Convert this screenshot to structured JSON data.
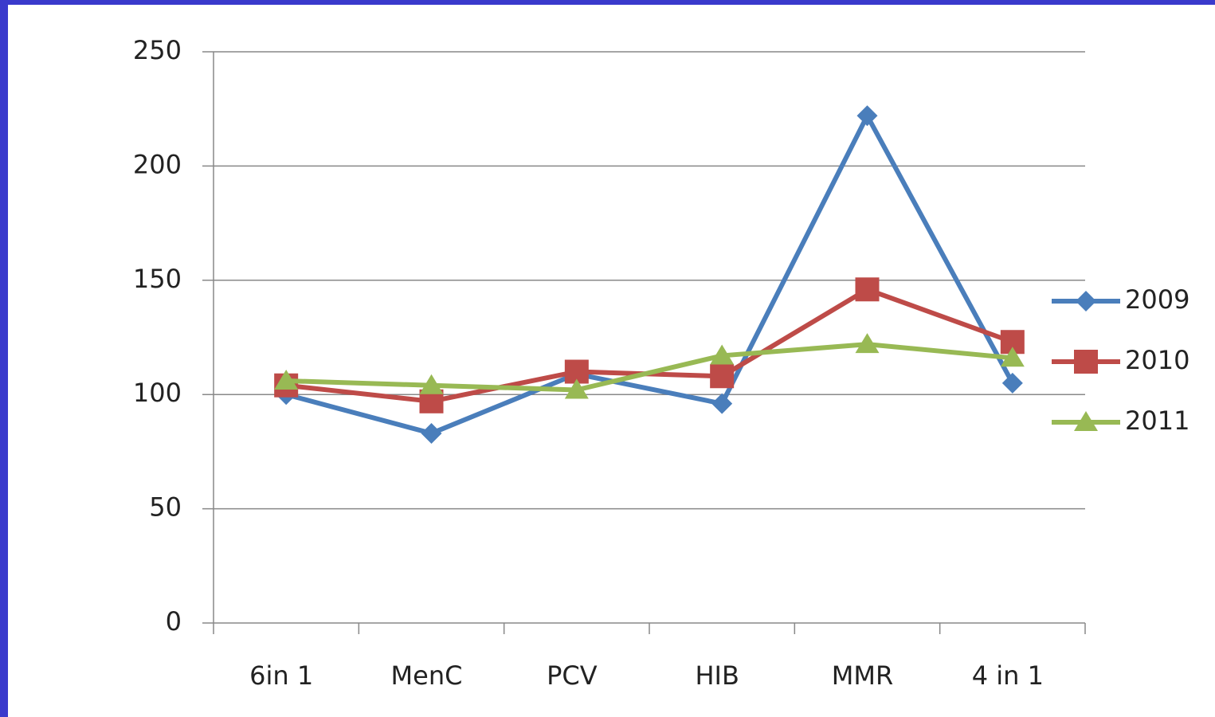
{
  "chart_data": {
    "type": "line",
    "categories": [
      "6in 1",
      "MenC",
      "PCV",
      "HIB",
      "MMR",
      "4 in 1"
    ],
    "series": [
      {
        "name": "2009",
        "color": "#4a7ebb",
        "marker": "diamond",
        "values": [
          100,
          83,
          109,
          96,
          222,
          105
        ]
      },
      {
        "name": "2010",
        "color": "#be4b48",
        "marker": "square",
        "values": [
          104,
          97,
          110,
          108,
          146,
          123
        ]
      },
      {
        "name": "2011",
        "color": "#98b954",
        "marker": "triangle",
        "values": [
          106,
          104,
          102,
          117,
          122,
          116
        ]
      }
    ],
    "ylim": [
      0,
      250
    ],
    "yticks": [
      0,
      50,
      100,
      150,
      200,
      250
    ],
    "grid": true,
    "legend": "right"
  }
}
